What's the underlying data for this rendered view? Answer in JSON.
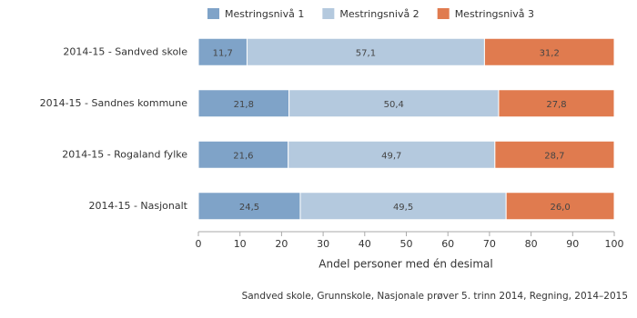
{
  "chart_data": {
    "type": "bar",
    "stacked": true,
    "orientation": "horizontal",
    "categories": [
      "2014-15 - Sandved skole",
      "2014-15 - Sandnes kommune",
      "2014-15 - Rogaland fylke",
      "2014-15 - Nasjonalt"
    ],
    "series": [
      {
        "name": "Mestringsnivå 1",
        "color": "#7fa3c8",
        "values": [
          11.7,
          21.8,
          21.6,
          24.5
        ],
        "value_labels": [
          "11,7",
          "21,8",
          "21,6",
          "24,5"
        ]
      },
      {
        "name": "Mestringsnivå 2",
        "color": "#b4c9de",
        "values": [
          57.1,
          50.4,
          49.7,
          49.5
        ],
        "value_labels": [
          "57,1",
          "50,4",
          "49,7",
          "49,5"
        ]
      },
      {
        "name": "Mestringsnivå 3",
        "color": "#e07b4f",
        "values": [
          31.2,
          27.8,
          28.7,
          26.0
        ],
        "value_labels": [
          "31,2",
          "27,8",
          "28,7",
          "26,0"
        ]
      }
    ],
    "xlim": [
      0,
      100
    ],
    "xticks": [
      0,
      10,
      20,
      30,
      40,
      50,
      60,
      70,
      80,
      90,
      100
    ],
    "xlabel": "Andel personer med én desimal",
    "source": "Sandved skole, Grunnskole, Nasjonale prøver 5. trinn 2014, Regning, 2014–2015",
    "legend": "top"
  }
}
